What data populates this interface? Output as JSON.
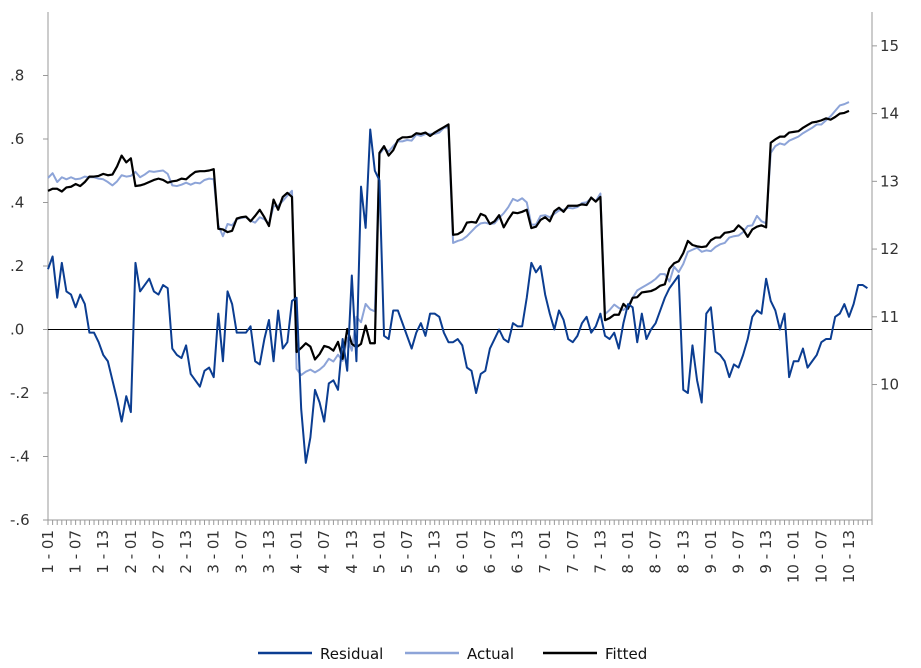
{
  "chart_data": {
    "type": "line",
    "left_axis": {
      "range": [
        -0.6,
        1.0
      ],
      "ticks": [
        -0.6,
        -0.4,
        -0.2,
        0.0,
        0.2,
        0.4,
        0.6,
        0.8
      ],
      "tick_labels": [
        "-.6",
        "-.4",
        "-.2",
        ".0",
        ".2",
        ".4",
        ".6",
        ".8"
      ]
    },
    "right_axis": {
      "range": [
        8.0,
        15.5
      ],
      "ticks": [
        10,
        11,
        12,
        13,
        14,
        15
      ],
      "tick_labels": [
        "10",
        "11",
        "12",
        "13",
        "14",
        "15"
      ]
    },
    "x_axis": {
      "count": 180,
      "tick_labels": [
        "1 - 01",
        "1 - 07",
        "1 - 13",
        "2 - 01",
        "2 - 07",
        "2 - 13",
        "3 - 01",
        "3 - 07",
        "3 - 13",
        "4 - 01",
        "4 - 07",
        "4 - 13",
        "5 - 01",
        "5 - 07",
        "5 - 13",
        "6 - 01",
        "6 - 07",
        "6 - 13",
        "7 - 01",
        "7 - 07",
        "7 - 13",
        "8 - 01",
        "8 - 07",
        "8 - 13",
        "9 - 01",
        "9 - 07",
        "9 - 13",
        "10 - 01",
        "10 - 07",
        "10 - 13"
      ]
    },
    "zero_line": 0,
    "series": [
      {
        "name": "Residual",
        "axis": "left",
        "color": "#0b3d91",
        "values": [
          0.19,
          0.23,
          0.1,
          0.21,
          0.12,
          0.11,
          0.07,
          0.11,
          0.08,
          -0.01,
          -0.01,
          -0.04,
          -0.08,
          -0.1,
          -0.16,
          -0.22,
          -0.29,
          -0.21,
          -0.26,
          0.21,
          0.12,
          0.14,
          0.16,
          0.12,
          0.11,
          0.14,
          0.13,
          -0.06,
          -0.08,
          -0.09,
          -0.05,
          -0.14,
          -0.16,
          -0.18,
          -0.13,
          -0.12,
          -0.15,
          0.05,
          -0.1,
          0.12,
          0.08,
          -0.01,
          -0.01,
          -0.01,
          0.01,
          -0.1,
          -0.11,
          -0.03,
          0.03,
          -0.1,
          0.06,
          -0.06,
          -0.04,
          0.09,
          0.1,
          -0.25,
          -0.42,
          -0.34,
          -0.19,
          -0.23,
          -0.29,
          -0.17,
          -0.16,
          -0.19,
          -0.03,
          -0.13,
          0.17,
          -0.1,
          0.45,
          0.32,
          0.63,
          0.5,
          0.47,
          -0.02,
          -0.03,
          0.06,
          0.06,
          0.02,
          -0.02,
          -0.06,
          -0.01,
          0.02,
          -0.02,
          0.05,
          0.05,
          0.04,
          -0.01,
          -0.04,
          -0.04,
          -0.03,
          -0.05,
          -0.12,
          -0.13,
          -0.2,
          -0.14,
          -0.13,
          -0.06,
          -0.03,
          0.0,
          -0.03,
          -0.04,
          0.02,
          0.01,
          0.01,
          0.1,
          0.21,
          0.18,
          0.2,
          0.11,
          0.05,
          0.0,
          0.06,
          0.03,
          -0.03,
          -0.04,
          -0.02,
          0.02,
          0.04,
          -0.01,
          0.01,
          0.05,
          -0.02,
          -0.03,
          -0.01,
          -0.06,
          0.02,
          0.08,
          0.07,
          -0.04,
          0.05,
          -0.03,
          0.0,
          0.02,
          0.06,
          0.1,
          0.13,
          0.15,
          0.17,
          -0.19,
          -0.2,
          -0.05,
          -0.16,
          -0.23,
          0.05,
          0.07,
          -0.07,
          -0.08,
          -0.1,
          -0.15,
          -0.11,
          -0.12,
          -0.08,
          -0.03,
          0.04,
          0.06,
          0.05,
          0.16,
          0.09,
          0.06,
          0.0,
          0.05,
          -0.15,
          -0.1,
          -0.1,
          -0.06,
          -0.12,
          -0.1,
          -0.08,
          -0.04,
          -0.03,
          -0.03,
          0.04,
          0.05,
          0.08,
          0.04,
          0.08,
          0.14,
          0.14,
          0.13
        ]
      },
      {
        "name": "Actual",
        "axis": "right",
        "color": "#8da4d8",
        "values": [
          13.05,
          13.12,
          12.99,
          13.06,
          13.03,
          13.06,
          13.03,
          13.04,
          13.07,
          13.06,
          13.06,
          13.04,
          13.03,
          12.99,
          12.94,
          13.0,
          13.09,
          13.07,
          13.08,
          13.14,
          13.06,
          13.1,
          13.15,
          13.14,
          13.15,
          13.16,
          13.11,
          12.94,
          12.93,
          12.95,
          12.98,
          12.95,
          12.98,
          12.97,
          13.02,
          13.04,
          13.03,
          12.35,
          12.19,
          12.37,
          12.35,
          12.44,
          12.46,
          12.47,
          12.42,
          12.39,
          12.47,
          12.44,
          12.37,
          12.63,
          12.64,
          12.71,
          12.79,
          12.86,
          10.23,
          10.14,
          10.19,
          10.22,
          10.18,
          10.22,
          10.28,
          10.38,
          10.34,
          10.44,
          10.35,
          10.69,
          10.5,
          11.0,
          10.92,
          11.19,
          11.11,
          11.08,
          13.4,
          13.49,
          13.44,
          13.52,
          13.59,
          13.59,
          13.61,
          13.6,
          13.69,
          13.67,
          13.7,
          13.7,
          13.7,
          13.72,
          13.79,
          13.8,
          12.09,
          12.12,
          12.14,
          12.19,
          12.26,
          12.33,
          12.38,
          12.39,
          12.37,
          12.38,
          12.46,
          12.53,
          12.62,
          12.74,
          12.71,
          12.75,
          12.69,
          12.36,
          12.36,
          12.49,
          12.5,
          12.47,
          12.52,
          12.57,
          12.58,
          12.61,
          12.6,
          12.62,
          12.68,
          12.69,
          12.75,
          12.71,
          12.82,
          11.04,
          11.1,
          11.18,
          11.13,
          11.1,
          11.16,
          11.28,
          11.39,
          11.43,
          11.47,
          11.51,
          11.56,
          11.63,
          11.63,
          11.52,
          11.74,
          11.66,
          11.78,
          11.96,
          11.99,
          12.02,
          11.96,
          11.98,
          11.97,
          12.03,
          12.07,
          12.09,
          12.17,
          12.19,
          12.2,
          12.25,
          12.34,
          12.35,
          12.49,
          12.41,
          12.38,
          13.42,
          13.52,
          13.56,
          13.54,
          13.6,
          13.63,
          13.66,
          13.71,
          13.75,
          13.79,
          13.84,
          13.84,
          13.9,
          13.96,
          14.04,
          14.12,
          14.14,
          14.17
        ]
      },
      {
        "name": "Fitted",
        "axis": "right",
        "color": "#000000",
        "values": [
          12.86,
          12.89,
          12.89,
          12.85,
          12.91,
          12.92,
          12.96,
          12.93,
          12.99,
          13.07,
          13.07,
          13.08,
          13.11,
          13.09,
          13.1,
          13.22,
          13.38,
          13.28,
          13.34,
          12.93,
          12.94,
          12.96,
          12.99,
          13.02,
          13.04,
          13.02,
          12.98,
          13.0,
          13.01,
          13.04,
          13.03,
          13.09,
          13.14,
          13.15,
          13.15,
          13.16,
          13.18,
          12.3,
          12.29,
          12.25,
          12.27,
          12.45,
          12.47,
          12.48,
          12.41,
          12.49,
          12.58,
          12.47,
          12.34,
          12.73,
          12.58,
          12.77,
          12.83,
          12.77,
          10.48,
          10.54,
          10.61,
          10.56,
          10.37,
          10.45,
          10.57,
          10.55,
          10.5,
          10.63,
          10.38,
          10.82,
          10.6,
          10.55,
          10.6,
          10.87,
          10.61,
          10.61,
          13.42,
          13.52,
          13.38,
          13.46,
          13.61,
          13.65,
          13.65,
          13.66,
          13.71,
          13.7,
          13.72,
          13.67,
          13.72,
          13.76,
          13.8,
          13.84,
          12.21,
          12.22,
          12.26,
          12.39,
          12.4,
          12.39,
          12.52,
          12.49,
          12.37,
          12.41,
          12.5,
          12.32,
          12.44,
          12.54,
          12.53,
          12.55,
          12.58,
          12.31,
          12.33,
          12.43,
          12.47,
          12.41,
          12.56,
          12.61,
          12.55,
          12.64,
          12.64,
          12.64,
          12.66,
          12.65,
          12.76,
          12.7,
          12.77,
          10.95,
          10.98,
          11.03,
          11.03,
          11.19,
          11.12,
          11.28,
          11.29,
          11.36,
          11.37,
          11.38,
          11.41,
          11.46,
          11.48,
          11.71,
          11.79,
          11.82,
          11.94,
          12.12,
          12.06,
          12.04,
          12.03,
          12.04,
          12.13,
          12.17,
          12.17,
          12.24,
          12.25,
          12.27,
          12.35,
          12.29,
          12.18,
          12.29,
          12.33,
          12.35,
          12.32,
          13.57,
          13.62,
          13.66,
          13.66,
          13.72,
          13.73,
          13.74,
          13.79,
          13.83,
          13.87,
          13.88,
          13.9,
          13.93,
          13.91,
          13.95,
          14.0,
          14.01,
          14.04
        ]
      }
    ],
    "legend": {
      "placement": "bottom-center",
      "entries": [
        "Residual",
        "Actual",
        "Fitted"
      ]
    },
    "grid": false
  }
}
